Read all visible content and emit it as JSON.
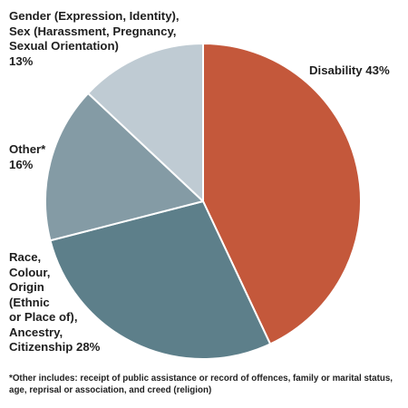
{
  "chart_data": {
    "type": "pie",
    "slices": [
      {
        "key": "disability",
        "label_lines": [
          "Disability 43%"
        ],
        "value": 43,
        "color": "#c4583b"
      },
      {
        "key": "race",
        "label_lines": [
          "Race,",
          "Colour,",
          "Origin",
          "(Ethnic",
          "or Place of),",
          "Ancestry,",
          "Citizenship 28%"
        ],
        "value": 28,
        "color": "#5d7f8a"
      },
      {
        "key": "other",
        "label_lines": [
          "Other*",
          "16%"
        ],
        "value": 16,
        "color": "#849ba5"
      },
      {
        "key": "gender",
        "label_lines": [
          "Gender (Expression, Identity),",
          "Sex (Harassment, Pregnancy,",
          "Sexual Orientation)",
          "13%"
        ],
        "value": 13,
        "color": "#bfcbd3"
      }
    ],
    "start_angle_deg": 0,
    "direction": "clockwise",
    "slice_border_color": "#ffffff",
    "footnote_lines": [
      "*Other includes: receipt of public assistance or record of offences, family or marital status,",
      "age, reprisal or association, and creed (religion)"
    ]
  }
}
